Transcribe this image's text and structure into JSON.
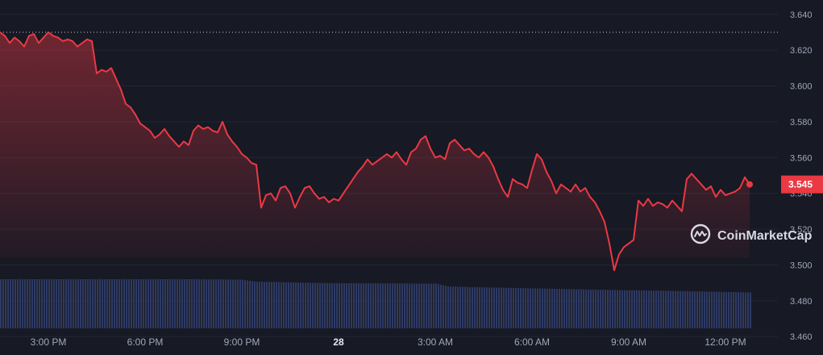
{
  "chart_data": {
    "type": "line",
    "title": "",
    "xlabel": "",
    "ylabel": "",
    "watermark": "CoinMarketCap",
    "ylim": [
      3.452,
      3.648
    ],
    "y_ticks": [
      {
        "value": 3.64,
        "label": "3.640"
      },
      {
        "value": 3.62,
        "label": "3.620"
      },
      {
        "value": 3.6,
        "label": "3.600"
      },
      {
        "value": 3.58,
        "label": "3.580"
      },
      {
        "value": 3.56,
        "label": "3.560"
      },
      {
        "value": 3.54,
        "label": "3.540"
      },
      {
        "value": 3.52,
        "label": "3.520"
      },
      {
        "value": 3.5,
        "label": "3.500"
      },
      {
        "value": 3.48,
        "label": "3.480"
      },
      {
        "value": 3.46,
        "label": "3.460"
      }
    ],
    "x_range_hours": [
      0,
      25.6
    ],
    "x_ticks": [
      {
        "h": 1.5,
        "label": "3:00 PM",
        "bold": false
      },
      {
        "h": 4.5,
        "label": "6:00 PM",
        "bold": false
      },
      {
        "h": 7.5,
        "label": "9:00 PM",
        "bold": false
      },
      {
        "h": 10.5,
        "label": "28",
        "bold": true
      },
      {
        "h": 13.5,
        "label": "3:00 AM",
        "bold": false
      },
      {
        "h": 16.5,
        "label": "6:00 AM",
        "bold": false
      },
      {
        "h": 19.5,
        "label": "9:00 AM",
        "bold": false
      },
      {
        "h": 22.5,
        "label": "12:00 PM",
        "bold": false
      }
    ],
    "reference_line": 3.63,
    "current_price": {
      "value": 3.545,
      "label": "3.545"
    },
    "grid": "horizontal",
    "colors": {
      "line": "#ea3943",
      "volume": "#2e3a63",
      "background": "#171924",
      "grid": "#232633",
      "badge": "#ea3943"
    },
    "series": [
      {
        "values": [
          [
            0.0,
            3.63
          ],
          [
            0.15,
            3.628
          ],
          [
            0.3,
            3.624
          ],
          [
            0.45,
            3.627
          ],
          [
            0.6,
            3.625
          ],
          [
            0.75,
            3.622
          ],
          [
            0.9,
            3.628
          ],
          [
            1.05,
            3.629
          ],
          [
            1.2,
            3.624
          ],
          [
            1.35,
            3.627
          ],
          [
            1.5,
            3.63
          ],
          [
            1.65,
            3.628
          ],
          [
            1.8,
            3.627
          ],
          [
            1.95,
            3.625
          ],
          [
            2.1,
            3.626
          ],
          [
            2.25,
            3.625
          ],
          [
            2.4,
            3.622
          ],
          [
            2.55,
            3.624
          ],
          [
            2.7,
            3.626
          ],
          [
            2.85,
            3.625
          ],
          [
            3.0,
            3.607
          ],
          [
            3.15,
            3.609
          ],
          [
            3.3,
            3.608
          ],
          [
            3.45,
            3.61
          ],
          [
            3.6,
            3.604
          ],
          [
            3.75,
            3.598
          ],
          [
            3.9,
            3.59
          ],
          [
            4.05,
            3.588
          ],
          [
            4.2,
            3.584
          ],
          [
            4.35,
            3.579
          ],
          [
            4.5,
            3.577
          ],
          [
            4.65,
            3.575
          ],
          [
            4.8,
            3.571
          ],
          [
            4.95,
            3.573
          ],
          [
            5.1,
            3.576
          ],
          [
            5.25,
            3.572
          ],
          [
            5.4,
            3.569
          ],
          [
            5.55,
            3.566
          ],
          [
            5.7,
            3.569
          ],
          [
            5.85,
            3.567
          ],
          [
            6.0,
            3.575
          ],
          [
            6.15,
            3.578
          ],
          [
            6.3,
            3.576
          ],
          [
            6.45,
            3.577
          ],
          [
            6.6,
            3.575
          ],
          [
            6.75,
            3.574
          ],
          [
            6.9,
            3.58
          ],
          [
            7.05,
            3.573
          ],
          [
            7.2,
            3.569
          ],
          [
            7.35,
            3.566
          ],
          [
            7.5,
            3.562
          ],
          [
            7.65,
            3.56
          ],
          [
            7.8,
            3.557
          ],
          [
            7.95,
            3.556
          ],
          [
            8.1,
            3.532
          ],
          [
            8.25,
            3.539
          ],
          [
            8.4,
            3.54
          ],
          [
            8.55,
            3.536
          ],
          [
            8.7,
            3.543
          ],
          [
            8.85,
            3.544
          ],
          [
            9.0,
            3.54
          ],
          [
            9.15,
            3.532
          ],
          [
            9.3,
            3.538
          ],
          [
            9.45,
            3.543
          ],
          [
            9.6,
            3.544
          ],
          [
            9.75,
            3.54
          ],
          [
            9.9,
            3.537
          ],
          [
            10.05,
            3.538
          ],
          [
            10.2,
            3.535
          ],
          [
            10.35,
            3.537
          ],
          [
            10.5,
            3.536
          ],
          [
            10.65,
            3.54
          ],
          [
            10.8,
            3.544
          ],
          [
            10.95,
            3.548
          ],
          [
            11.1,
            3.552
          ],
          [
            11.25,
            3.555
          ],
          [
            11.4,
            3.559
          ],
          [
            11.55,
            3.556
          ],
          [
            11.7,
            3.558
          ],
          [
            11.85,
            3.56
          ],
          [
            12.0,
            3.562
          ],
          [
            12.15,
            3.56
          ],
          [
            12.3,
            3.563
          ],
          [
            12.45,
            3.559
          ],
          [
            12.6,
            3.556
          ],
          [
            12.75,
            3.563
          ],
          [
            12.9,
            3.565
          ],
          [
            13.05,
            3.57
          ],
          [
            13.2,
            3.572
          ],
          [
            13.35,
            3.565
          ],
          [
            13.5,
            3.56
          ],
          [
            13.65,
            3.561
          ],
          [
            13.8,
            3.559
          ],
          [
            13.95,
            3.568
          ],
          [
            14.1,
            3.57
          ],
          [
            14.25,
            3.567
          ],
          [
            14.4,
            3.564
          ],
          [
            14.55,
            3.565
          ],
          [
            14.7,
            3.562
          ],
          [
            14.85,
            3.56
          ],
          [
            15.0,
            3.563
          ],
          [
            15.15,
            3.56
          ],
          [
            15.3,
            3.555
          ],
          [
            15.45,
            3.548
          ],
          [
            15.6,
            3.542
          ],
          [
            15.75,
            3.538
          ],
          [
            15.9,
            3.548
          ],
          [
            16.05,
            3.546
          ],
          [
            16.2,
            3.545
          ],
          [
            16.35,
            3.543
          ],
          [
            16.5,
            3.553
          ],
          [
            16.65,
            3.562
          ],
          [
            16.8,
            3.559
          ],
          [
            16.95,
            3.552
          ],
          [
            17.1,
            3.547
          ],
          [
            17.25,
            3.54
          ],
          [
            17.4,
            3.545
          ],
          [
            17.55,
            3.543
          ],
          [
            17.7,
            3.541
          ],
          [
            17.85,
            3.545
          ],
          [
            18.0,
            3.541
          ],
          [
            18.15,
            3.543
          ],
          [
            18.3,
            3.538
          ],
          [
            18.45,
            3.535
          ],
          [
            18.6,
            3.53
          ],
          [
            18.75,
            3.524
          ],
          [
            18.9,
            3.512
          ],
          [
            19.05,
            3.497
          ],
          [
            19.2,
            3.506
          ],
          [
            19.35,
            3.51
          ],
          [
            19.5,
            3.512
          ],
          [
            19.65,
            3.514
          ],
          [
            19.8,
            3.536
          ],
          [
            19.95,
            3.533
          ],
          [
            20.1,
            3.537
          ],
          [
            20.25,
            3.533
          ],
          [
            20.4,
            3.535
          ],
          [
            20.55,
            3.534
          ],
          [
            20.7,
            3.532
          ],
          [
            20.85,
            3.536
          ],
          [
            21.0,
            3.533
          ],
          [
            21.15,
            3.53
          ],
          [
            21.3,
            3.548
          ],
          [
            21.45,
            3.551
          ],
          [
            21.6,
            3.548
          ],
          [
            21.75,
            3.545
          ],
          [
            21.9,
            3.542
          ],
          [
            22.05,
            3.544
          ],
          [
            22.2,
            3.538
          ],
          [
            22.35,
            3.542
          ],
          [
            22.5,
            3.539
          ],
          [
            22.65,
            3.54
          ],
          [
            22.8,
            3.541
          ],
          [
            22.95,
            3.543
          ],
          [
            23.1,
            3.549
          ],
          [
            23.25,
            3.545
          ]
        ]
      }
    ],
    "volume": {
      "note": "volume bars shown without scale",
      "values": [
        [
          0,
          1.0
        ],
        [
          3,
          1.0
        ],
        [
          6,
          1.0
        ],
        [
          7.5,
          0.99
        ],
        [
          7.9,
          0.95
        ],
        [
          10,
          0.92
        ],
        [
          13.5,
          0.91
        ],
        [
          13.9,
          0.85
        ],
        [
          16,
          0.82
        ],
        [
          19,
          0.78
        ],
        [
          21,
          0.76
        ],
        [
          23.25,
          0.73
        ]
      ]
    }
  }
}
